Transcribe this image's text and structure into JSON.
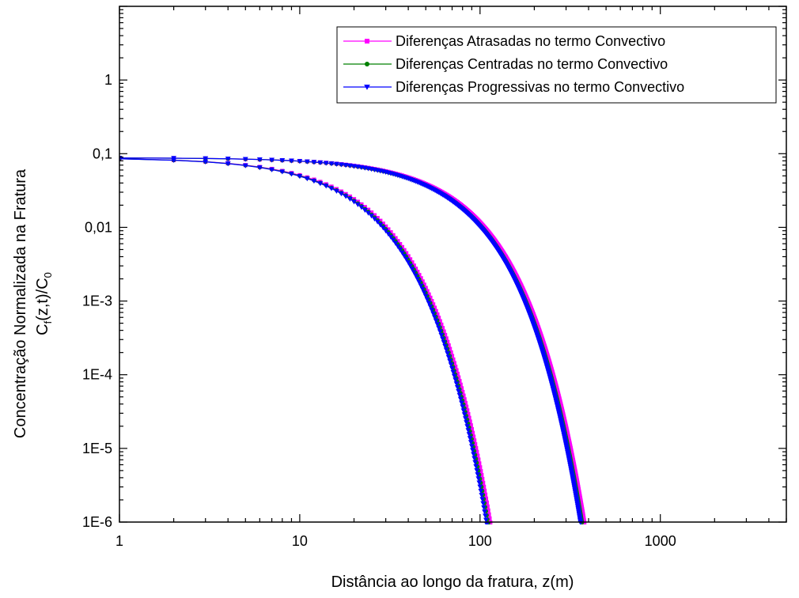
{
  "chart_data": {
    "type": "line",
    "title": "",
    "xlabel": "Distância ao longo da fratura, z(m)",
    "ylabel_line1": "Concentração Normalizada na Fratura",
    "ylabel_line2": {
      "c": "C",
      "f": "f",
      "mid": "(z,t)/C",
      "zero": "0"
    },
    "xscale": "log",
    "yscale": "log",
    "xlim": [
      1,
      5000
    ],
    "ylim": [
      1e-06,
      10
    ],
    "xticks": [
      {
        "value": 1,
        "label": "1"
      },
      {
        "value": 10,
        "label": "10"
      },
      {
        "value": 100,
        "label": "100"
      },
      {
        "value": 1000,
        "label": "1000"
      }
    ],
    "yticks": [
      {
        "value": 1e-06,
        "label": "1E-6"
      },
      {
        "value": 1e-05,
        "label": "1E-5"
      },
      {
        "value": 0.0001,
        "label": "1E-4"
      },
      {
        "value": 0.001,
        "label": "1E-3"
      },
      {
        "value": 0.01,
        "label": "0,01"
      },
      {
        "value": 0.1,
        "label": "0,1"
      },
      {
        "value": 1,
        "label": "1"
      }
    ],
    "legend_position": "top-right",
    "grid": false,
    "curve_groups": [
      {
        "c0": 0.088,
        "scale": 15.5,
        "power": 1.25
      },
      {
        "c0": 0.088,
        "scale": 55.5,
        "power": 1.3
      }
    ],
    "series": [
      {
        "name": "Diferenças Atrasadas no termo Convectivo",
        "color": "#ff00ff",
        "marker": "square",
        "scale_factor": 1.05
      },
      {
        "name": "Diferenças Centradas no termo Convectivo",
        "color": "#008000",
        "marker": "circle",
        "scale_factor": 1.02
      },
      {
        "name": "Diferenças Progressivas no termo Convectivo",
        "color": "#0000ff",
        "marker": "triangle-down",
        "scale_factor": 1.0
      }
    ]
  }
}
